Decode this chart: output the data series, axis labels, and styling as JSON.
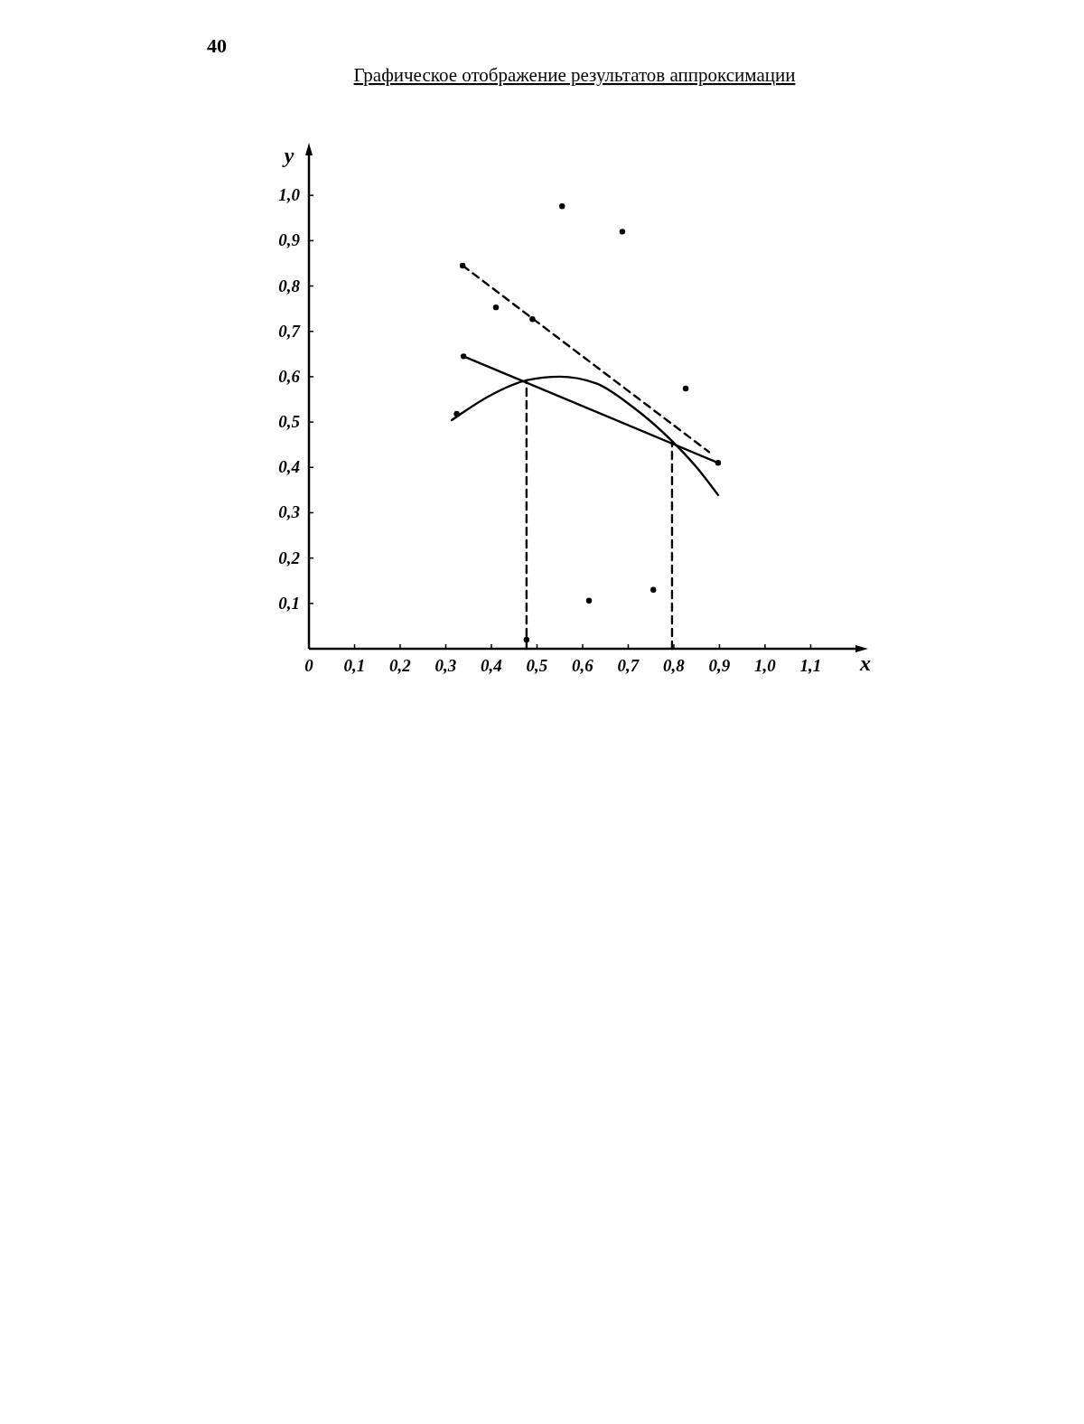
{
  "chart_data": {
    "type": "scatter",
    "title": "Графическое отображение результатов аппроксимации",
    "xlabel": "x",
    "ylabel": "y",
    "annotations": [
      "40"
    ],
    "xlim": [
      0,
      1.21
    ],
    "ylim": [
      0,
      1.1
    ],
    "xticks": [
      0,
      {
        "value": 0.1,
        "label": "0,1"
      },
      {
        "value": 0.2,
        "label": "0,2"
      },
      {
        "value": 0.3,
        "label": "0,3"
      },
      {
        "value": 0.4,
        "label": "0,4"
      },
      {
        "value": 0.5,
        "label": "0,5"
      },
      {
        "value": 0.6,
        "label": "0,6"
      },
      {
        "value": 0.7,
        "label": "0,7"
      },
      {
        "value": 0.8,
        "label": "0,8"
      },
      {
        "value": 0.9,
        "label": "0,9"
      },
      {
        "value": 1.0,
        "label": "1,0"
      },
      {
        "value": 1.1,
        "label": "1,1"
      }
    ],
    "yticks": [
      {
        "value": 0.1,
        "label": "0,1"
      },
      {
        "value": 0.2,
        "label": "0,2"
      },
      {
        "value": 0.3,
        "label": "0,3"
      },
      {
        "value": 0.4,
        "label": "0,4"
      },
      {
        "value": 0.5,
        "label": "0,5"
      },
      {
        "value": 0.6,
        "label": "0,6"
      },
      {
        "value": 0.7,
        "label": "0,7"
      },
      {
        "value": 0.8,
        "label": "0,8"
      },
      {
        "value": 0.9,
        "label": "0,9"
      },
      {
        "value": 1.0,
        "label": "1,0"
      }
    ],
    "grid": false,
    "series": [
      {
        "marker": "circle",
        "color": "#000000",
        "x": [
          0.337,
          0.41,
          0.49,
          0.555,
          0.687,
          0.826,
          0.614,
          0.755,
          0.477,
          0.339,
          0.897,
          0.324
        ],
        "values": [
          0.845,
          0.753,
          0.727,
          0.976,
          0.92,
          0.574,
          0.106,
          0.13,
          0.02,
          0.645,
          0.41,
          0.518
        ]
      },
      {
        "type": "line",
        "color": "#000000",
        "line_style": "solid",
        "x": [
          0.339,
          0.897
        ],
        "values": [
          0.645,
          0.41
        ]
      },
      {
        "type": "line",
        "color": "#000000",
        "line_style": "dashed",
        "x": [
          0.337,
          0.877
        ],
        "values": [
          0.845,
          0.434
        ]
      },
      {
        "type": "line",
        "color": "#000000",
        "line_style": "solid",
        "x": [
          0.313,
          0.4,
          0.477,
          0.55,
          0.63,
          0.709,
          0.8,
          0.85,
          0.897
        ],
        "values": [
          0.504,
          0.56,
          0.592,
          0.6,
          0.585,
          0.534,
          0.454,
          0.4,
          0.339
        ]
      },
      {
        "type": "line",
        "color": "#000000",
        "line_style": "dashed",
        "x": [
          0.477,
          0.477
        ],
        "values": [
          0,
          0.592
        ]
      },
      {
        "type": "line",
        "color": "#000000",
        "line_style": "dashed",
        "x": [
          0.796,
          0.796
        ],
        "values": [
          0,
          0.454
        ]
      }
    ]
  }
}
